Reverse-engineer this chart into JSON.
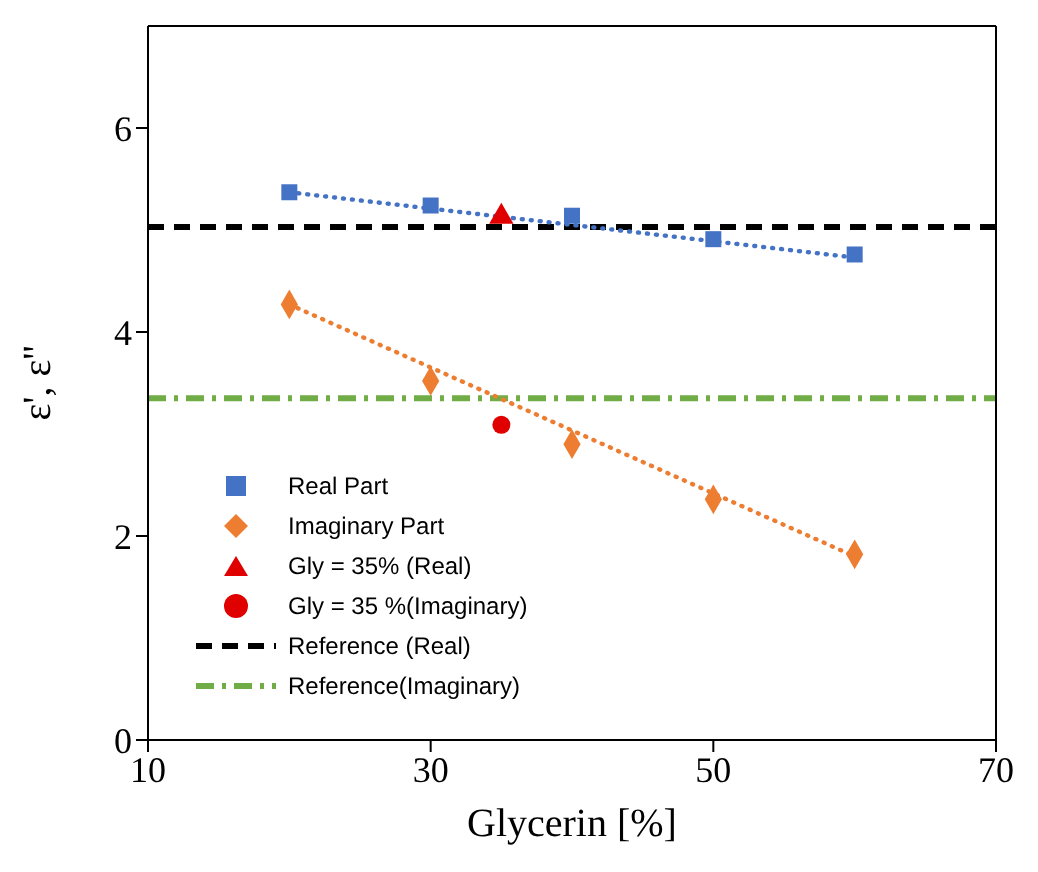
{
  "chart_data": {
    "type": "scatter",
    "xlabel": "Glycerin [%]",
    "ylabel": "ε', ε''",
    "xlim": [
      10,
      70
    ],
    "xticks": [
      10,
      30,
      50,
      70
    ],
    "ylim": [
      0,
      7
    ],
    "yticks": [
      0,
      2,
      4,
      6
    ],
    "legend": "bottom left",
    "series": [
      {
        "name": "Real Part",
        "color": "#4472c4",
        "marker": "square",
        "x": [
          20,
          30,
          40,
          50,
          60
        ],
        "values": [
          5.37,
          5.24,
          5.14,
          4.91,
          4.76
        ]
      },
      {
        "name": "Imaginary Part",
        "color": "#ed7d31",
        "marker": "diamond",
        "x": [
          20,
          30,
          40,
          50,
          60
        ],
        "values": [
          4.27,
          3.52,
          2.9,
          2.36,
          1.82
        ]
      },
      {
        "name": "Gly = 35% (Real)",
        "color": "#e00000",
        "marker": "triangle",
        "x": [
          35
        ],
        "values": [
          5.13
        ]
      },
      {
        "name": "Gly = 35 %(Imaginary)",
        "color": "#e00000",
        "marker": "circle",
        "x": [
          35
        ],
        "values": [
          3.09
        ]
      },
      {
        "type": "line",
        "color": "#4472c4",
        "line_style": "dotted",
        "marker": "none",
        "x": [
          20,
          60
        ],
        "values": [
          5.37,
          4.73
        ]
      },
      {
        "type": "line",
        "color": "#ed7d31",
        "line_style": "dotted",
        "marker": "none",
        "x": [
          20,
          60
        ],
        "values": [
          4.27,
          1.8
        ]
      }
    ],
    "ref_lines": [
      {
        "axis": "y",
        "value": 5.03,
        "label": "Reference (Real)",
        "color": "#000000",
        "line_style": "dashed"
      },
      {
        "axis": "y",
        "value": 3.35,
        "label": "Reference(Imaginary)",
        "color": "#70ad47",
        "line_style": "dashdot"
      }
    ]
  }
}
